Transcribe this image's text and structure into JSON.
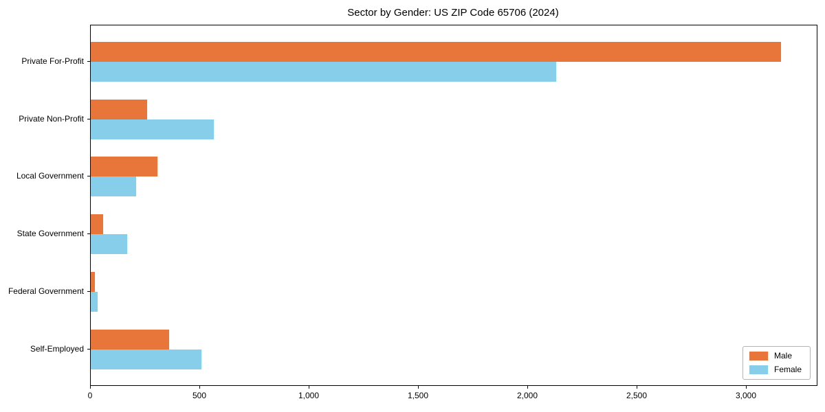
{
  "chart_data": {
    "type": "bar",
    "orientation": "horizontal",
    "title": "Sector by Gender: US ZIP Code 65706 (2024)",
    "categories": [
      "Private For-Profit",
      "Private Non-Profit",
      "Local Government",
      "State Government",
      "Federal Government",
      "Self-Employed"
    ],
    "series": [
      {
        "name": "Male",
        "color": "#e8763b",
        "values": [
          3155,
          258,
          306,
          57,
          18,
          359
        ]
      },
      {
        "name": "Female",
        "color": "#87ceeb",
        "values": [
          2130,
          563,
          209,
          167,
          32,
          505
        ]
      }
    ],
    "xlim": [
      0,
      3320
    ],
    "xticks": [
      {
        "value": 0,
        "label": "0"
      },
      {
        "value": 500,
        "label": "500"
      },
      {
        "value": 1000,
        "label": "1,000"
      },
      {
        "value": 1500,
        "label": "1,500"
      },
      {
        "value": 2000,
        "label": "2,000"
      },
      {
        "value": 2500,
        "label": "2,500"
      },
      {
        "value": 3000,
        "label": "3,000"
      }
    ],
    "xlabel": "",
    "ylabel": "",
    "grid": false,
    "legend_position": "lower right"
  }
}
